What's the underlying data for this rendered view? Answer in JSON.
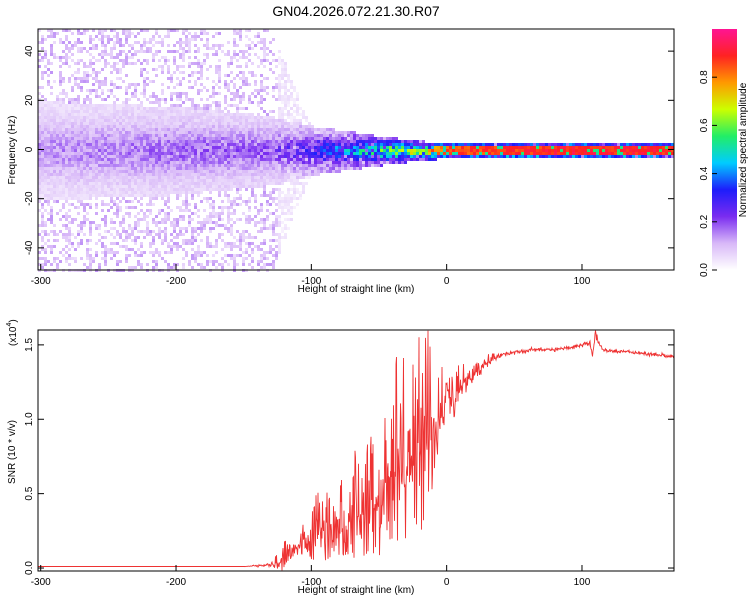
{
  "title": "GN04.2026.072.21.30.R07",
  "chart_data": [
    {
      "type": "heatmap",
      "xlabel": "Height of straight line (km)",
      "ylabel": "Frequency (Hz)",
      "xlim": [
        -302,
        168
      ],
      "ylim": [
        -49,
        49
      ],
      "x_ticks": [
        -300,
        -200,
        -100,
        0,
        100
      ],
      "y_ticks": [
        -40,
        -20,
        0,
        20,
        40
      ],
      "colorbar": {
        "label": "Normalized spectral amplitude",
        "range": [
          0.0,
          1.0
        ],
        "ticks": [
          0.0,
          0.2,
          0.4,
          0.6,
          0.8
        ],
        "colormap": [
          "#ffffff",
          "#d8b8f8",
          "#7a2cf0",
          "#1d1dfb",
          "#00ccff",
          "#22ee66",
          "#ccff00",
          "#ff9900",
          "#ff2222",
          "#ff1493"
        ]
      },
      "profile": [
        {
          "x": -300,
          "band_halfwidth_hz": 20,
          "peak_amplitude": 0.15,
          "scatter_halfwidth_hz": 49
        },
        {
          "x": -200,
          "band_halfwidth_hz": 18,
          "peak_amplitude": 0.18,
          "scatter_halfwidth_hz": 49
        },
        {
          "x": -130,
          "band_halfwidth_hz": 14,
          "peak_amplitude": 0.2,
          "scatter_halfwidth_hz": 49
        },
        {
          "x": -100,
          "band_halfwidth_hz": 10,
          "peak_amplitude": 0.3,
          "scatter_halfwidth_hz": 8
        },
        {
          "x": -50,
          "band_halfwidth_hz": 6,
          "peak_amplitude": 0.55,
          "scatter_halfwidth_hz": 6
        },
        {
          "x": -20,
          "band_halfwidth_hz": 4,
          "peak_amplitude": 0.7,
          "scatter_halfwidth_hz": 4
        },
        {
          "x": 0,
          "band_halfwidth_hz": 3,
          "peak_amplitude": 0.85,
          "scatter_halfwidth_hz": 3
        },
        {
          "x": 100,
          "band_halfwidth_hz": 3,
          "peak_amplitude": 0.9,
          "scatter_halfwidth_hz": 3
        },
        {
          "x": 168,
          "band_halfwidth_hz": 3,
          "peak_amplitude": 0.88,
          "scatter_halfwidth_hz": 3
        }
      ]
    },
    {
      "type": "line",
      "xlabel": "Height of straight line (km)",
      "ylabel": "SNR (10 * v/v)",
      "y_multiplier": "(x10",
      "y_multiplier_exp": "4",
      "xlim": [
        -302,
        168
      ],
      "ylim": [
        -0.02,
        1.6
      ],
      "x_ticks": [
        -300,
        -200,
        -100,
        0,
        100
      ],
      "y_ticks": [
        0.0,
        0.5,
        1.0,
        1.5
      ],
      "y_tick_labels": [
        "0.0",
        "0.5",
        "1.0",
        "1.5"
      ],
      "color": "#ee3333",
      "series": [
        {
          "x": [
            -300,
            -250,
            -200,
            -150,
            -130,
            -120,
            -115,
            -110,
            -100,
            -90,
            -80,
            -70,
            -60,
            -50,
            -40,
            -30,
            -20,
            -15,
            -10,
            -5,
            0,
            5,
            10,
            20,
            30,
            40,
            50,
            60,
            70,
            80,
            90,
            100,
            105,
            108,
            110,
            112,
            115,
            120,
            140,
            168
          ],
          "y": [
            0.01,
            0.01,
            0.01,
            0.01,
            0.02,
            0.05,
            0.1,
            0.15,
            0.2,
            0.25,
            0.3,
            0.33,
            0.37,
            0.45,
            0.55,
            0.65,
            0.75,
            0.82,
            0.95,
            1.05,
            1.12,
            1.15,
            1.22,
            1.3,
            1.38,
            1.43,
            1.45,
            1.46,
            1.47,
            1.47,
            1.48,
            1.5,
            1.51,
            1.45,
            1.57,
            1.52,
            1.47,
            1.46,
            1.45,
            1.42
          ],
          "spike_amplitude": [
            0,
            0,
            0,
            0,
            0.02,
            0.18,
            0.05,
            0.1,
            0.25,
            0.35,
            0.35,
            0.45,
            0.5,
            0.65,
            0.8,
            0.95,
            0.85,
            1.05,
            0.7,
            0.3,
            0.25,
            0.25,
            0.15,
            0.1,
            0.06,
            0.03,
            0.02,
            0.02,
            0.02,
            0.02,
            0.02,
            0.03,
            0.03,
            0.1,
            0.05,
            0.03,
            0.02,
            0.02,
            0.02,
            0.02
          ],
          "spike_amplitude_units": "data units of y"
        }
      ]
    }
  ]
}
